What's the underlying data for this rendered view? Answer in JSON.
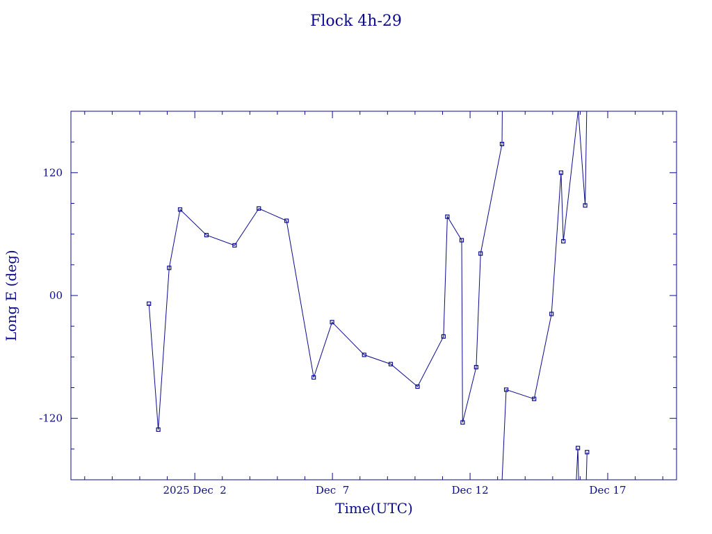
{
  "chart_data": {
    "type": "line",
    "title": "Flock 4h-29",
    "xlabel": "Time(UTC)",
    "ylabel": "Long E (deg)",
    "x_unit": "days",
    "xlim": [
      "2025-11-27T12:00",
      "2025-12-19T12:00"
    ],
    "ylim": [
      -180,
      180
    ],
    "y_ticks": [
      {
        "value": 120,
        "label": "120"
      },
      {
        "value": 0,
        "label": "00"
      },
      {
        "value": -120,
        "label": "-120"
      }
    ],
    "y_minor_step": 30,
    "x_ticks": [
      {
        "value": "2025-12-02T00:00",
        "label": "2025 Dec  2"
      },
      {
        "value": "2025-12-07T00:00",
        "label": "Dec  7"
      },
      {
        "value": "2025-12-12T00:00",
        "label": "Dec 12"
      },
      {
        "value": "2025-12-17T00:00",
        "label": "Dec 17"
      }
    ],
    "x_minor_step_days": 1,
    "color": "#0a0a8c",
    "grid": false,
    "series": [
      {
        "markers": true,
        "points": [
          {
            "x": "2025-11-30T08:00",
            "y": -8
          },
          {
            "x": "2025-11-30T16:10",
            "y": -131
          },
          {
            "x": "2025-12-01T01:40",
            "y": 27
          },
          {
            "x": "2025-12-01T11:10",
            "y": 84
          },
          {
            "x": "2025-12-02T10:10",
            "y": 59
          },
          {
            "x": "2025-12-03T10:40",
            "y": 49
          },
          {
            "x": "2025-12-04T07:50",
            "y": 85
          },
          {
            "x": "2025-12-05T08:00",
            "y": 73
          },
          {
            "x": "2025-12-06T07:40",
            "y": -80
          },
          {
            "x": "2025-12-06T23:40",
            "y": -26
          },
          {
            "x": "2025-12-08T03:40",
            "y": -58
          },
          {
            "x": "2025-12-09T02:50",
            "y": -67
          },
          {
            "x": "2025-12-10T02:10",
            "y": -89
          },
          {
            "x": "2025-12-11T00:50",
            "y": -40
          },
          {
            "x": "2025-12-11T04:10",
            "y": 77
          },
          {
            "x": "2025-12-11T16:40",
            "y": 54
          },
          {
            "x": "2025-12-11T17:30",
            "y": -124
          },
          {
            "x": "2025-12-12T05:20",
            "y": -70
          },
          {
            "x": "2025-12-12T09:10",
            "y": 41
          },
          {
            "x": "2025-12-13T03:50",
            "y": 148
          },
          {
            "x": "2025-12-13T04:05",
            "y": 180
          }
        ]
      },
      {
        "markers": true,
        "points": [
          {
            "x": "2025-12-13T03:55",
            "y": -180
          },
          {
            "x": "2025-12-13T07:30",
            "y": -92
          },
          {
            "x": "2025-12-14T07:50",
            "y": -101
          },
          {
            "x": "2025-12-14T23:00",
            "y": -18
          },
          {
            "x": "2025-12-15T07:20",
            "y": 120
          },
          {
            "x": "2025-12-15T09:20",
            "y": 53
          },
          {
            "x": "2025-12-15T22:10",
            "y": 180
          }
        ]
      },
      {
        "markers": true,
        "points": [
          {
            "x": "2025-12-15T20:40",
            "y": -180
          },
          {
            "x": "2025-12-15T22:00",
            "y": -149
          },
          {
            "x": "2025-12-15T22:40",
            "y": -180
          }
        ]
      },
      {
        "markers": true,
        "points": [
          {
            "x": "2025-12-15T22:20",
            "y": 180
          },
          {
            "x": "2025-12-16T04:20",
            "y": 88
          },
          {
            "x": "2025-12-16T05:40",
            "y": 180
          }
        ]
      },
      {
        "markers": true,
        "points": [
          {
            "x": "2025-12-16T05:20",
            "y": -180
          },
          {
            "x": "2025-12-16T06:00",
            "y": -153
          }
        ]
      }
    ]
  }
}
